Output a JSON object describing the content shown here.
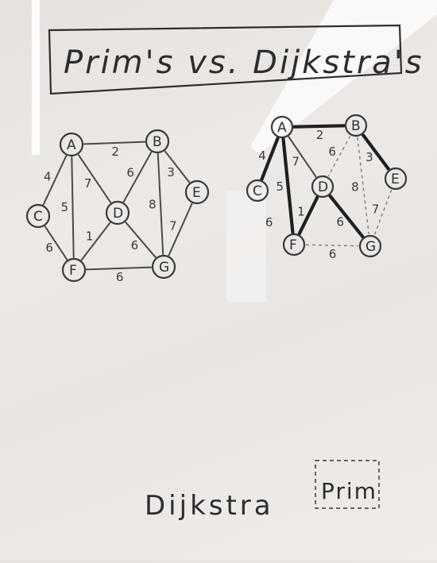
{
  "title": "Prim's vs. Dijkstra's",
  "left_graph": {
    "nodes": [
      {
        "id": "A",
        "label": "A"
      },
      {
        "id": "B",
        "label": "B"
      },
      {
        "id": "C",
        "label": "C"
      },
      {
        "id": "D",
        "label": "D"
      },
      {
        "id": "E",
        "label": "E"
      },
      {
        "id": "F",
        "label": "F"
      },
      {
        "id": "G",
        "label": "G"
      }
    ],
    "edges": [
      {
        "from": "A",
        "to": "B",
        "weight": "2"
      },
      {
        "from": "A",
        "to": "C",
        "weight": "4"
      },
      {
        "from": "A",
        "to": "D",
        "weight": "7"
      },
      {
        "from": "A",
        "to": "F",
        "weight": "5"
      },
      {
        "from": "B",
        "to": "D",
        "weight": "6"
      },
      {
        "from": "B",
        "to": "E",
        "weight": "3"
      },
      {
        "from": "B",
        "to": "G",
        "weight": "8"
      },
      {
        "from": "C",
        "to": "F",
        "weight": "6"
      },
      {
        "from": "D",
        "to": "F",
        "weight": "1"
      },
      {
        "from": "D",
        "to": "G",
        "weight": "6"
      },
      {
        "from": "E",
        "to": "G",
        "weight": "7"
      },
      {
        "from": "F",
        "to": "G",
        "weight": "6"
      }
    ]
  },
  "right_graph": {
    "nodes": [
      {
        "id": "A",
        "label": "A"
      },
      {
        "id": "B",
        "label": "B"
      },
      {
        "id": "C",
        "label": "C"
      },
      {
        "id": "D",
        "label": "D"
      },
      {
        "id": "E",
        "label": "E"
      },
      {
        "id": "F",
        "label": "F"
      },
      {
        "id": "G",
        "label": "G"
      }
    ],
    "edges": [
      {
        "from": "A",
        "to": "B",
        "weight": "2",
        "style": "bold"
      },
      {
        "from": "A",
        "to": "C",
        "weight": "4",
        "style": "bold"
      },
      {
        "from": "A",
        "to": "D",
        "weight": "7",
        "style": "thin"
      },
      {
        "from": "A",
        "to": "F",
        "weight": "5",
        "style": "bold"
      },
      {
        "from": "B",
        "to": "D",
        "weight": "6",
        "style": "dashed"
      },
      {
        "from": "B",
        "to": "E",
        "weight": "3",
        "style": "bold"
      },
      {
        "from": "B",
        "to": "G",
        "weight": "8",
        "style": "dashed"
      },
      {
        "from": "C",
        "to": "F",
        "weight": "6",
        "style": "none"
      },
      {
        "from": "D",
        "to": "F",
        "weight": "1",
        "style": "bold"
      },
      {
        "from": "D",
        "to": "G",
        "weight": "6",
        "style": "bold"
      },
      {
        "from": "E",
        "to": "G",
        "weight": "7",
        "style": "dashed"
      },
      {
        "from": "F",
        "to": "G",
        "weight": "6",
        "style": "dashed"
      }
    ]
  },
  "bottom_left_text": "Dijkstra",
  "bottom_right_text": "Prim",
  "colors": {
    "board": "#ebe8e5",
    "ink": "#2d2d2d",
    "dashed_ink": "#7d7d7d"
  }
}
